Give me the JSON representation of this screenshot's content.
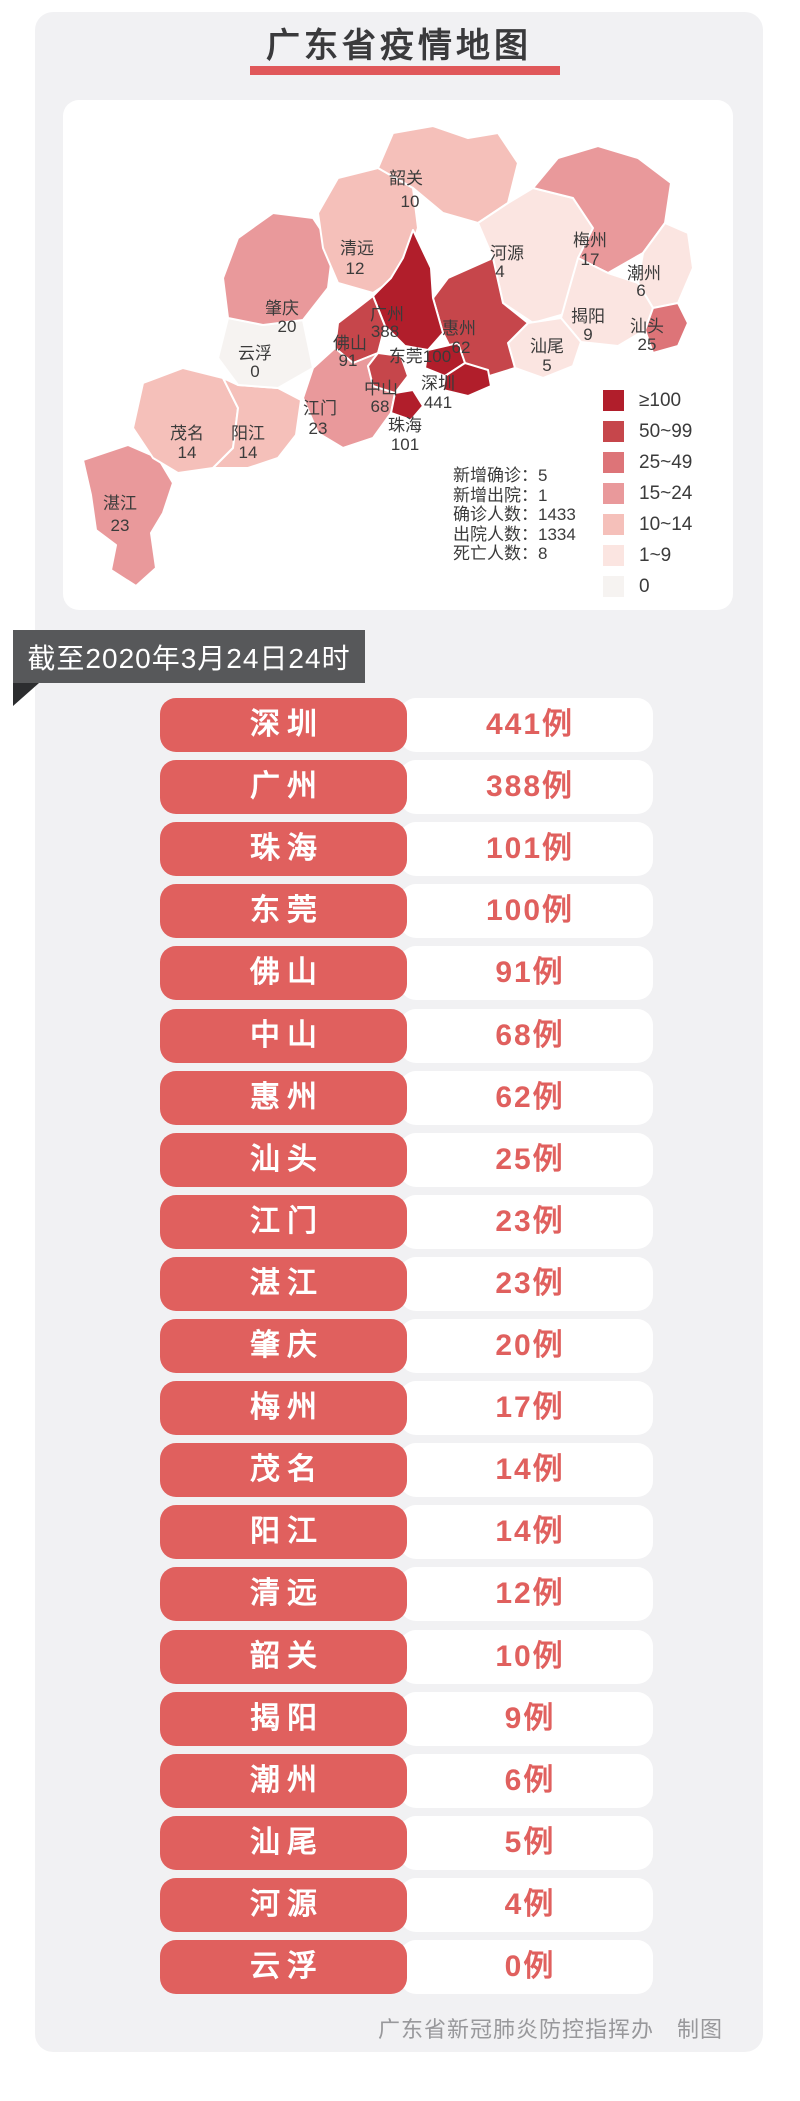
{
  "page": {
    "title": "广东省疫情地图",
    "date_banner": "截至2020年3月24日24时",
    "footer": "广东省新冠肺炎防控指挥办　制图"
  },
  "colors": {
    "accent": "#e0585a",
    "canvas_bg": "#f1f1f3",
    "card_bg": "#ffffff",
    "title_text": "#3a3a3c",
    "banner_bg": "#57585a",
    "banner_fold": "#2c2d2f",
    "banner_text": "#ffffff",
    "pill_red": "#e0605e",
    "count_red": "#e0605e",
    "row_pill_text": "#ffffff",
    "footer_text": "#98989b",
    "map_label": "#3b3b3b",
    "stats_text": "#3b3b3b",
    "scale": {
      "gte100": "#b11e2b",
      "50-99": "#c6464b",
      "25-49": "#dd7478",
      "15-24": "#e9999b",
      "10-14": "#f5c0ba",
      "1-9": "#fbe5e1",
      "0": "#f6f3f1"
    }
  },
  "map": {
    "stats": [
      {
        "label": "新增确诊",
        "value": "5"
      },
      {
        "label": "新增出院",
        "value": "1"
      },
      {
        "label": "确诊人数",
        "value": "1433"
      },
      {
        "label": "出院人数",
        "value": "1334"
      },
      {
        "label": "死亡人数",
        "value": "8"
      }
    ],
    "legend": [
      {
        "label": "≥100",
        "level": "gte100"
      },
      {
        "label": "50~99",
        "level": "50-99"
      },
      {
        "label": "25~49",
        "level": "25-49"
      },
      {
        "label": "15~24",
        "level": "15-24"
      },
      {
        "label": "10~14",
        "level": "10-14"
      },
      {
        "label": "1~9",
        "level": "1-9"
      },
      {
        "label": "0",
        "level": "0"
      }
    ],
    "regions": [
      {
        "id": "shaoguan",
        "name": "韶关",
        "value": "10",
        "level": "10-14"
      },
      {
        "id": "qingyuan",
        "name": "清远",
        "value": "12",
        "level": "10-14"
      },
      {
        "id": "heyuan",
        "name": "河源",
        "value": "4",
        "level": "1-9"
      },
      {
        "id": "meizhou",
        "name": "梅州",
        "value": "17",
        "level": "15-24"
      },
      {
        "id": "chaozhou",
        "name": "潮州",
        "value": "6",
        "level": "1-9"
      },
      {
        "id": "shantou",
        "name": "汕头",
        "value": "25",
        "level": "25-49"
      },
      {
        "id": "jieyang",
        "name": "揭阳",
        "value": "9",
        "level": "1-9"
      },
      {
        "id": "shanwei",
        "name": "汕尾",
        "value": "5",
        "level": "1-9"
      },
      {
        "id": "huizhou",
        "name": "惠州",
        "value": "62",
        "level": "50-99"
      },
      {
        "id": "guangzhou",
        "name": "广州",
        "value": "388",
        "level": "gte100"
      },
      {
        "id": "dongguan",
        "name": "东莞",
        "value": "100",
        "level": "gte100"
      },
      {
        "id": "shenzhen",
        "name": "深圳",
        "value": "441",
        "level": "gte100"
      },
      {
        "id": "zhuhai",
        "name": "珠海",
        "value": "101",
        "level": "gte100"
      },
      {
        "id": "zhongshan",
        "name": "中山",
        "value": "68",
        "level": "50-99"
      },
      {
        "id": "foshan",
        "name": "佛山",
        "value": "91",
        "level": "50-99"
      },
      {
        "id": "jiangmen",
        "name": "江门",
        "value": "23",
        "level": "15-24"
      },
      {
        "id": "zhaoqing",
        "name": "肇庆",
        "value": "20",
        "level": "15-24"
      },
      {
        "id": "yunfu",
        "name": "云浮",
        "value": "0",
        "level": "0"
      },
      {
        "id": "maoming",
        "name": "茂名",
        "value": "14",
        "level": "10-14"
      },
      {
        "id": "yangjiang",
        "name": "阳江",
        "value": "14",
        "level": "10-14"
      },
      {
        "id": "zhanjiang",
        "name": "湛江",
        "value": "23",
        "level": "15-24"
      }
    ]
  },
  "list": [
    {
      "city": "深圳",
      "count": "441例"
    },
    {
      "city": "广州",
      "count": "388例"
    },
    {
      "city": "珠海",
      "count": "101例"
    },
    {
      "city": "东莞",
      "count": "100例"
    },
    {
      "city": "佛山",
      "count": "91例"
    },
    {
      "city": "中山",
      "count": "68例"
    },
    {
      "city": "惠州",
      "count": "62例"
    },
    {
      "city": "汕头",
      "count": "25例"
    },
    {
      "city": "江门",
      "count": "23例"
    },
    {
      "city": "湛江",
      "count": "23例"
    },
    {
      "city": "肇庆",
      "count": "20例"
    },
    {
      "city": "梅州",
      "count": "17例"
    },
    {
      "city": "茂名",
      "count": "14例"
    },
    {
      "city": "阳江",
      "count": "14例"
    },
    {
      "city": "清远",
      "count": "12例"
    },
    {
      "city": "韶关",
      "count": "10例"
    },
    {
      "city": "揭阳",
      "count": "9例"
    },
    {
      "city": "潮州",
      "count": "6例"
    },
    {
      "city": "汕尾",
      "count": "5例"
    },
    {
      "city": "河源",
      "count": "4例"
    },
    {
      "city": "云浮",
      "count": "0例"
    }
  ]
}
